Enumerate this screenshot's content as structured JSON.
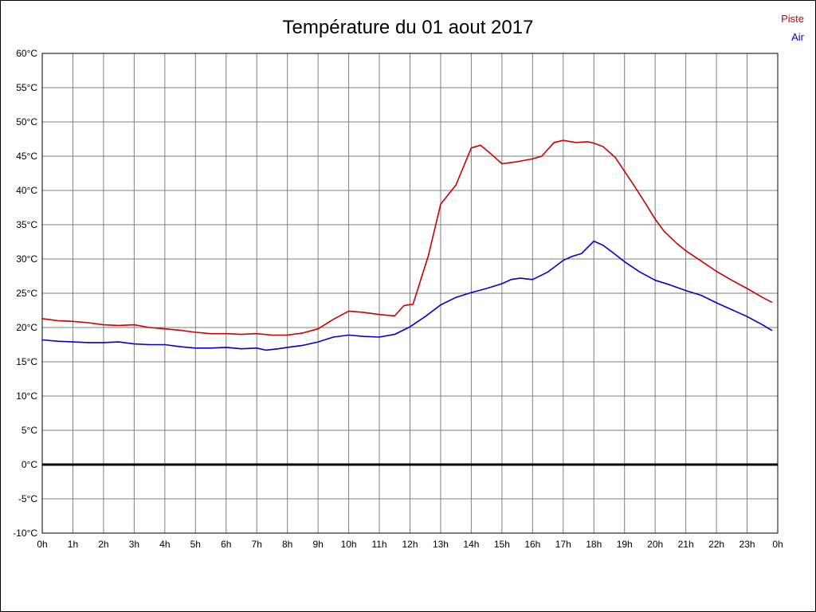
{
  "page": {
    "title": "Température du 01 aout 2017"
  },
  "legend": {
    "piste_label": "Piste",
    "air_label": "Air"
  },
  "colors": {
    "piste": "#cc0000",
    "air": "#0000cc",
    "grid": "#7f7f7f",
    "frame": "#000000",
    "zero_line": "#000000",
    "text": "#000000",
    "background": "#ffffff"
  },
  "chart_data": {
    "type": "line",
    "title": "Température du 01 aout 2017",
    "xlabel": "",
    "ylabel": "",
    "xlim": [
      0,
      24
    ],
    "ylim": [
      -10,
      60
    ],
    "y_step": 5,
    "grid": true,
    "legend_position": "top-right",
    "x_ticks": [
      "0h",
      "1h",
      "2h",
      "3h",
      "4h",
      "5h",
      "6h",
      "7h",
      "8h",
      "9h",
      "10h",
      "11h",
      "12h",
      "13h",
      "14h",
      "15h",
      "16h",
      "17h",
      "18h",
      "19h",
      "20h",
      "21h",
      "22h",
      "23h",
      "0h"
    ],
    "y_ticks": [
      "60°C",
      "55°C",
      "50°C",
      "45°C",
      "40°C",
      "35°C",
      "30°C",
      "25°C",
      "20°C",
      "15°C",
      "10°C",
      "5°C",
      "0°C",
      "-5°C",
      "-10°C"
    ],
    "series": [
      {
        "name": "Piste",
        "color": "#cc0000",
        "x": [
          0,
          0.5,
          1,
          1.5,
          2,
          2.5,
          3,
          3.5,
          4,
          4.5,
          5,
          5.5,
          6,
          6.5,
          7,
          7.5,
          8,
          8.5,
          9,
          9.5,
          10,
          10.5,
          11,
          11.5,
          11.8,
          12.1,
          12.6,
          13,
          13.5,
          14,
          14.3,
          14.6,
          15,
          15.5,
          16,
          16.3,
          16.7,
          17,
          17.4,
          17.8,
          18,
          18.3,
          18.7,
          19,
          19.3,
          19.7,
          20,
          20.3,
          20.7,
          21,
          21.5,
          22,
          22.5,
          23,
          23.5,
          23.8
        ],
        "values": [
          21.3,
          21.0,
          20.9,
          20.7,
          20.4,
          20.3,
          20.4,
          20.0,
          19.8,
          19.6,
          19.3,
          19.1,
          19.1,
          19.0,
          19.1,
          18.9,
          18.9,
          19.2,
          19.8,
          21.2,
          22.4,
          22.2,
          21.9,
          21.7,
          23.2,
          23.4,
          30.5,
          38.0,
          40.8,
          46.2,
          46.6,
          45.5,
          43.9,
          44.2,
          44.6,
          45.0,
          47.0,
          47.3,
          47.0,
          47.1,
          46.9,
          46.4,
          44.8,
          42.8,
          40.8,
          38.0,
          35.8,
          34.0,
          32.3,
          31.2,
          29.7,
          28.2,
          26.9,
          25.7,
          24.4,
          23.7
        ]
      },
      {
        "name": "Air",
        "color": "#0000cc",
        "x": [
          0,
          0.5,
          1,
          1.5,
          2,
          2.5,
          3,
          3.5,
          4,
          4.5,
          5,
          5.5,
          6,
          6.5,
          7,
          7.3,
          7.7,
          8,
          8.5,
          9,
          9.5,
          10,
          10.5,
          11,
          11.5,
          12,
          12.5,
          13,
          13.5,
          14,
          14.5,
          15,
          15.3,
          15.6,
          16,
          16.5,
          17,
          17.3,
          17.6,
          18,
          18.3,
          18.6,
          19,
          19.5,
          20,
          20.5,
          21,
          21.5,
          22,
          22.5,
          23,
          23.5,
          23.8
        ],
        "values": [
          18.2,
          18.0,
          17.9,
          17.8,
          17.8,
          17.9,
          17.6,
          17.5,
          17.5,
          17.2,
          17.0,
          17.0,
          17.1,
          16.9,
          17.0,
          16.7,
          16.9,
          17.1,
          17.4,
          17.9,
          18.6,
          18.9,
          18.7,
          18.6,
          19.0,
          20.1,
          21.6,
          23.3,
          24.4,
          25.1,
          25.7,
          26.4,
          27.0,
          27.2,
          27.0,
          28.1,
          29.8,
          30.4,
          30.8,
          32.6,
          32.0,
          31.0,
          29.6,
          28.1,
          26.9,
          26.2,
          25.4,
          24.7,
          23.6,
          22.6,
          21.6,
          20.4,
          19.6
        ]
      }
    ]
  }
}
